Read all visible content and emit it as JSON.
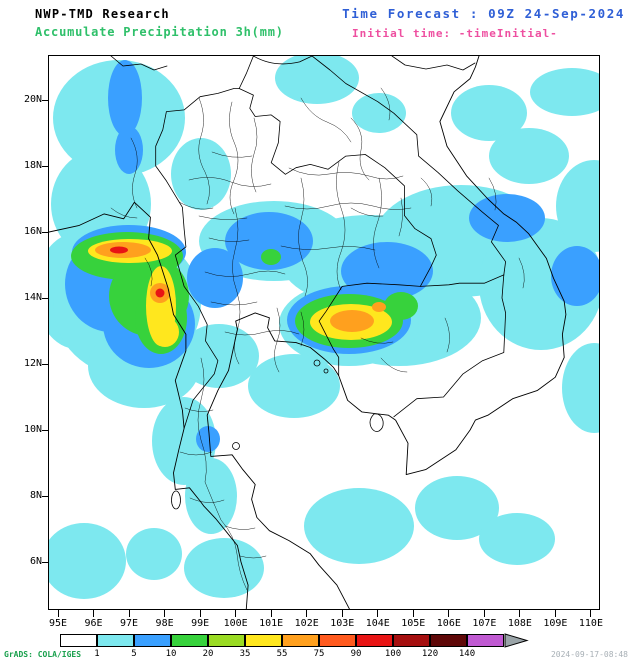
{
  "header": {
    "title": "NWP-TMD Research",
    "forecast_time": "Time Forecast : 09Z 24-Sep-2024",
    "product": "Accumulate Precipitation 3h(mm)",
    "initial_time": "Initial time: -timeInitial-",
    "colors": {
      "title": "#000000",
      "forecast_time": "#2f5fd6",
      "product": "#2fc06a",
      "initial_time": "#ee4fa0"
    }
  },
  "map": {
    "lat_labels": [
      "20N",
      "18N",
      "16N",
      "14N",
      "12N",
      "10N",
      "8N",
      "6N"
    ],
    "lon_labels": [
      "95E",
      "96E",
      "97E",
      "98E",
      "99E",
      "100E",
      "101E",
      "102E",
      "103E",
      "104E",
      "105E",
      "106E",
      "107E",
      "108E",
      "109E",
      "110E"
    ],
    "precip_colors": {
      "c1": "#7de8ef",
      "c2": "#3aa0ff",
      "c3": "#37d23c",
      "c4": "#ffe71e",
      "c5": "#ffa01e",
      "c6": "#e81414"
    }
  },
  "legend": {
    "levels": [
      "1",
      "5",
      "10",
      "20",
      "35",
      "55",
      "75",
      "90",
      "100",
      "120",
      "140"
    ],
    "colors": [
      "#ffffff",
      "#7de8ef",
      "#3aa0ff",
      "#37d23c",
      "#9adb23",
      "#ffe71e",
      "#ffa01e",
      "#ff5a1e",
      "#e81414",
      "#a50f0f",
      "#5f0808",
      "#c05ad2"
    ],
    "arrow_color": "#9aa4a8"
  },
  "footer": {
    "credit": "GrADS: COLA/IGES",
    "credit_color": "#18a04c",
    "timestamp": "2024-09-17-08:48",
    "timestamp_color": "#a8b0b6"
  }
}
